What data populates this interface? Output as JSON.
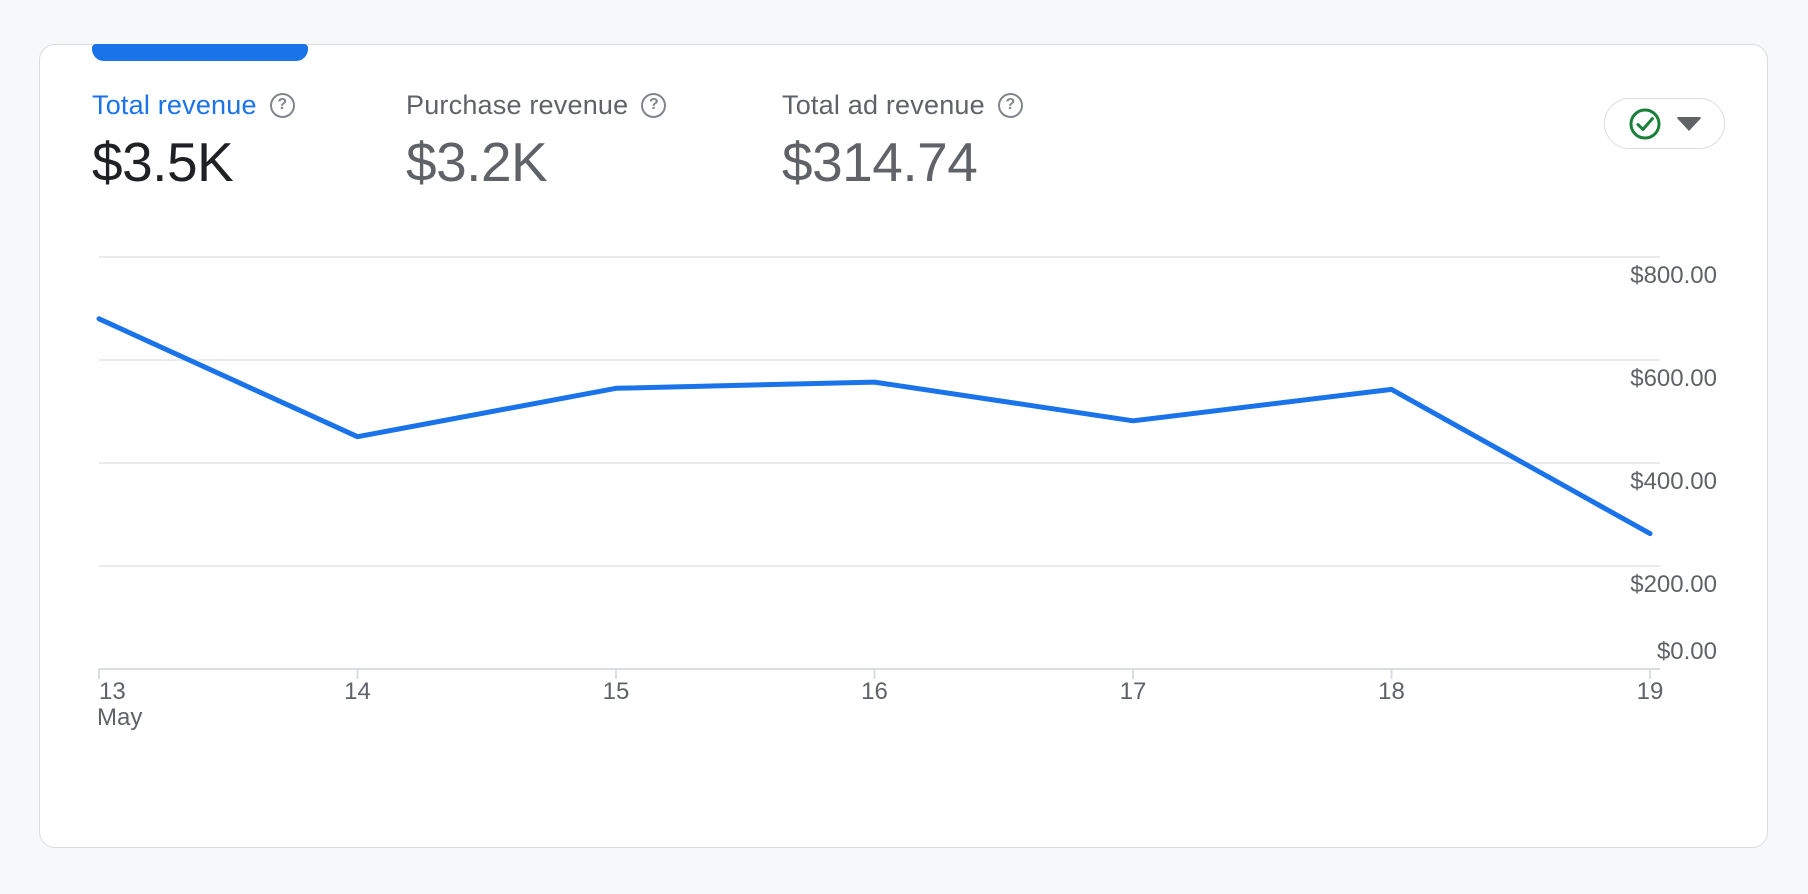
{
  "colors": {
    "accent_blue": "#1a73e8",
    "status_green": "#188038",
    "selected_value_text": "#202124",
    "muted_text": "#5f6368",
    "help_icon_gray": "#80868b",
    "card_border": "#dadce0",
    "gridline": "#e9ebed",
    "page_background": "#f6f8fa"
  },
  "metrics": [
    {
      "label": "Total revenue",
      "value": "$3.5K",
      "selected": true,
      "help_icon": "?"
    },
    {
      "label": "Purchase revenue",
      "value": "$3.2K",
      "selected": false,
      "help_icon": "?"
    },
    {
      "label": "Total ad revenue",
      "value": "$314.74",
      "selected": false,
      "help_icon": "?"
    }
  ],
  "status_button": {
    "icon": "check-circle-ok",
    "state": "good-data-quality",
    "has_dropdown": true
  },
  "chart_data": {
    "type": "line",
    "title": "",
    "x_labels": [
      "13",
      "14",
      "15",
      "16",
      "17",
      "18",
      "19"
    ],
    "x_axis_sublabel": "May",
    "series": [
      {
        "name": "Total revenue",
        "color": "#1a73e8",
        "values": [
          680,
          451,
          545,
          557,
          482,
          543,
          263
        ]
      }
    ],
    "y_ticks": [
      {
        "value": 800,
        "label": "$800.00"
      },
      {
        "value": 600,
        "label": "$600.00"
      },
      {
        "value": 400,
        "label": "$400.00"
      },
      {
        "value": 200,
        "label": "$200.00"
      },
      {
        "value": 0,
        "label": "$0.00"
      }
    ],
    "ylim": [
      0,
      880
    ],
    "grid": true,
    "legend": "none",
    "y_axis_side": "right"
  }
}
